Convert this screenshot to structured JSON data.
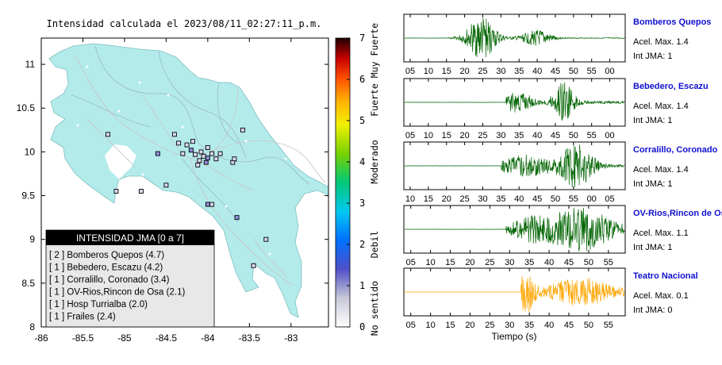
{
  "map": {
    "title": "Intensidad calculada el 2023/08/11_02:27:11_p.m.",
    "xlim": [
      -86,
      -82.55
    ],
    "ylim": [
      8,
      11.3
    ],
    "x_ticks": [
      "-86",
      "-85.5",
      "-85",
      "-84.5",
      "-84",
      "-83.5",
      "-83"
    ],
    "x_tick_values": [
      -86,
      -85.5,
      -85,
      -84.5,
      -84,
      -83.5,
      -83
    ],
    "y_ticks": [
      "11",
      "10.5",
      "10",
      "9.5",
      "9",
      "8.5",
      "8"
    ],
    "y_tick_values": [
      11,
      10.5,
      10,
      9.5,
      9,
      8.5,
      8
    ],
    "land_color": "#b3ebeb",
    "sea_color": "#ffffff"
  },
  "colorbar": {
    "ticks": [
      "0",
      "1",
      "2",
      "3",
      "4",
      "5",
      "6",
      "7"
    ],
    "levels": [
      "No sentido",
      "Debil",
      "Moderado",
      "Fuerte",
      "Muy Fuerte"
    ],
    "level_values": [
      0.45,
      2,
      4,
      5.5,
      6.7
    ],
    "range": [
      0,
      7
    ]
  },
  "legend": {
    "title": "INTENSIDAD JMA [0 a 7]",
    "items": [
      "[ 2 ]  Bomberos Quepos (4.7)",
      "[ 1 ]  Bebedero, Escazu (4.2)",
      "[ 1 ]  Corralillo, Coronado (3.4)",
      "[ 1 ]  OV-Rios,Rincon de Osa (2.1)",
      "[ 1 ]  Hosp Turrialba (2.0)",
      "[ 1 ]  Frailes (2.4)"
    ]
  },
  "waveforms": {
    "xlabel": "Tiempo (s)",
    "panels": [
      {
        "station": "Bomberos Quepos",
        "accel": "Acel. Max. 1.4",
        "jma": "Int JMA: 1",
        "color": "#006400",
        "ticks": [
          "05",
          "10",
          "15",
          "20",
          "25",
          "30",
          "35",
          "40",
          "45",
          "50",
          "55",
          "00"
        ],
        "onset": 0.2,
        "bursts": [
          [
            0.35,
            0.07,
            0.95
          ],
          [
            0.6,
            0.07,
            0.35
          ]
        ],
        "baseline": 0.02
      },
      {
        "station": "Bebedero, Escazu",
        "accel": "Acel. Max. 1.4",
        "jma": "Int JMA: 1",
        "color": "#006400",
        "ticks": [
          "05",
          "10",
          "15",
          "20",
          "25",
          "30",
          "35",
          "40",
          "45",
          "50",
          "55",
          "00"
        ],
        "onset": 0.46,
        "bursts": [
          [
            0.52,
            0.06,
            0.5
          ],
          [
            0.72,
            0.05,
            0.9
          ]
        ],
        "baseline": 0.06
      },
      {
        "station": "Corralillo, Coronado",
        "accel": "Acel. Max. 1.4",
        "jma": "Int JMA: 1",
        "color": "#006400",
        "ticks": [
          "10",
          "15",
          "20",
          "25",
          "30",
          "35",
          "40",
          "45",
          "50",
          "55",
          "00",
          "05"
        ],
        "onset": 0.44,
        "bursts": [
          [
            0.55,
            0.12,
            0.45
          ],
          [
            0.78,
            0.08,
            0.95
          ]
        ],
        "baseline": 0.06
      },
      {
        "station": "OV-Rios,Rincon de Osa",
        "accel": "Acel. Max. 1.1",
        "jma": "Int JMA: 1",
        "color": "#006400",
        "ticks": [
          "05",
          "10",
          "15",
          "20",
          "25",
          "30",
          "35",
          "40",
          "45",
          "50",
          "55"
        ],
        "onset": 0.46,
        "bursts": [
          [
            0.58,
            0.1,
            0.45
          ],
          [
            0.8,
            0.14,
            0.95
          ]
        ],
        "baseline": 0.1
      },
      {
        "station": "Teatro Nacional",
        "accel": "Acel. Max. 0.1",
        "jma": "Int JMA: 0",
        "color": "#ffa500",
        "ticks": [
          "05",
          "10",
          "15",
          "20",
          "25",
          "30",
          "35",
          "40",
          "45",
          "50",
          "55"
        ],
        "onset": 0.53,
        "bursts": [
          [
            0.55,
            0.04,
            0.95
          ],
          [
            0.8,
            0.14,
            0.55
          ]
        ],
        "baseline": 0.12
      }
    ]
  },
  "chart_data": [
    {
      "type": "scatter",
      "title": "Intensidad calculada el 2023/08/11_02:27:11_p.m.",
      "xlim": [
        -86,
        -82.55
      ],
      "ylim": [
        8,
        11.3
      ],
      "legend_title": "INTENSIDAD JMA [0 a 7]",
      "stations_listed": [
        {
          "name": "Bomberos Quepos",
          "count": 2,
          "value": 4.7
        },
        {
          "name": "Bebedero, Escazu",
          "count": 1,
          "value": 4.2
        },
        {
          "name": "Corralillo, Coronado",
          "count": 1,
          "value": 3.4
        },
        {
          "name": "OV-Rios,Rincon de Osa",
          "count": 1,
          "value": 2.1
        },
        {
          "name": "Hosp Turrialba",
          "count": 1,
          "value": 2.0
        },
        {
          "name": "Frailes",
          "count": 1,
          "value": 2.4
        }
      ]
    },
    {
      "type": "line",
      "xlabel": "Tiempo (s)",
      "series": [
        {
          "name": "Bomberos Quepos",
          "peak_accel": 1.4,
          "jma": 1
        },
        {
          "name": "Bebedero, Escazu",
          "peak_accel": 1.4,
          "jma": 1
        },
        {
          "name": "Corralillo, Coronado",
          "peak_accel": 1.4,
          "jma": 1
        },
        {
          "name": "OV-Rios,Rincon de Osa",
          "peak_accel": 1.1,
          "jma": 1
        },
        {
          "name": "Teatro Nacional",
          "peak_accel": 0.1,
          "jma": 0
        }
      ]
    }
  ]
}
